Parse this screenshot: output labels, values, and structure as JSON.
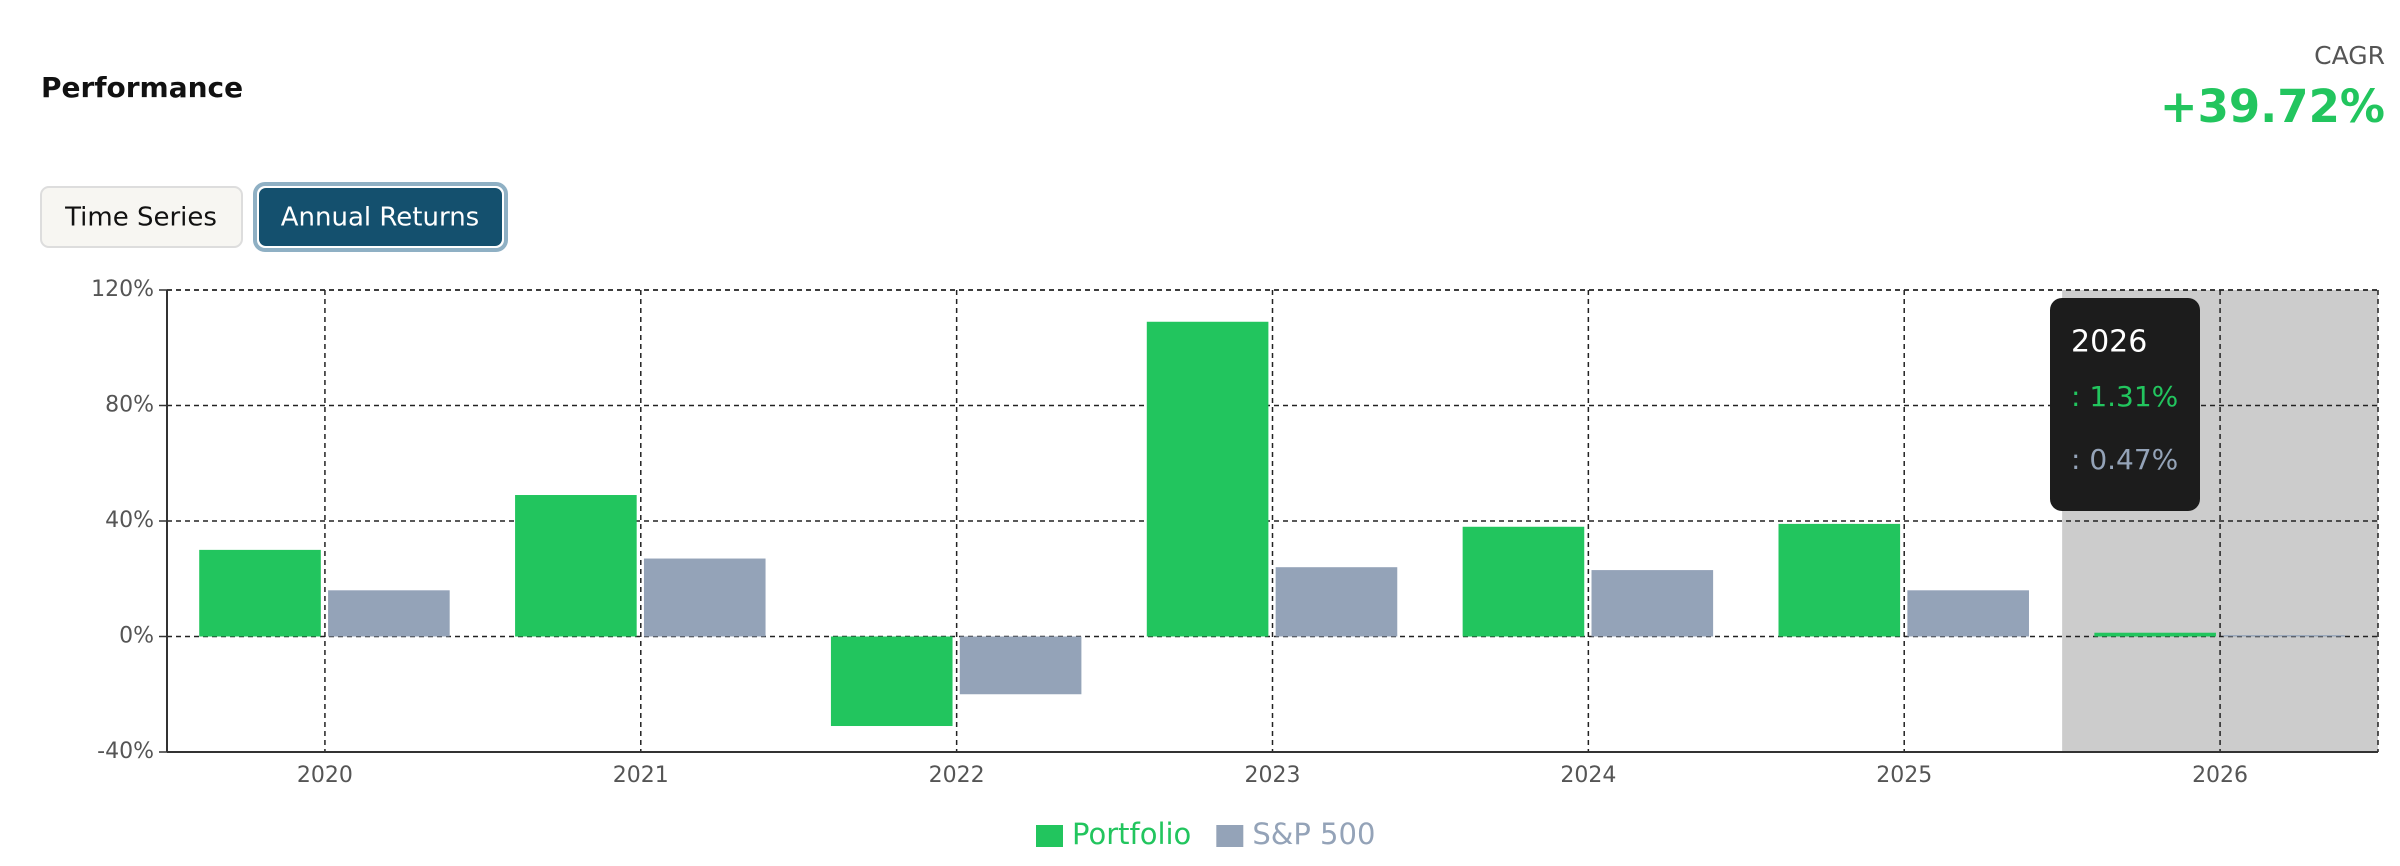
{
  "header": {
    "title": "Performance",
    "metric_label": "CAGR",
    "metric_value": "+39.72%"
  },
  "tabs": [
    "Time Series",
    "Annual Returns"
  ],
  "chart_data": {
    "type": "bar",
    "categories": [
      "2020",
      "2021",
      "2022",
      "2023",
      "2024",
      "2025",
      "2026"
    ],
    "series": [
      {
        "name": "Portfolio",
        "color": "#22c55e",
        "values": [
          30,
          49,
          -31,
          109,
          38,
          39,
          1.31
        ]
      },
      {
        "name": "S&P 500",
        "color": "#94a3b8",
        "values": [
          16,
          27,
          -20,
          24,
          23,
          16,
          0.47
        ]
      }
    ],
    "ylim": [
      -40,
      120
    ],
    "yticks": [
      {
        "value": -40,
        "label": "-40%"
      },
      {
        "value": 0,
        "label": "0%"
      },
      {
        "value": 40,
        "label": "40%"
      },
      {
        "value": 80,
        "label": "80%"
      },
      {
        "value": 120,
        "label": "120%"
      }
    ],
    "grid": true,
    "tooltip": {
      "title": "2026",
      "lines": [
        ": 1.31%",
        ": 0.47%"
      ]
    }
  }
}
